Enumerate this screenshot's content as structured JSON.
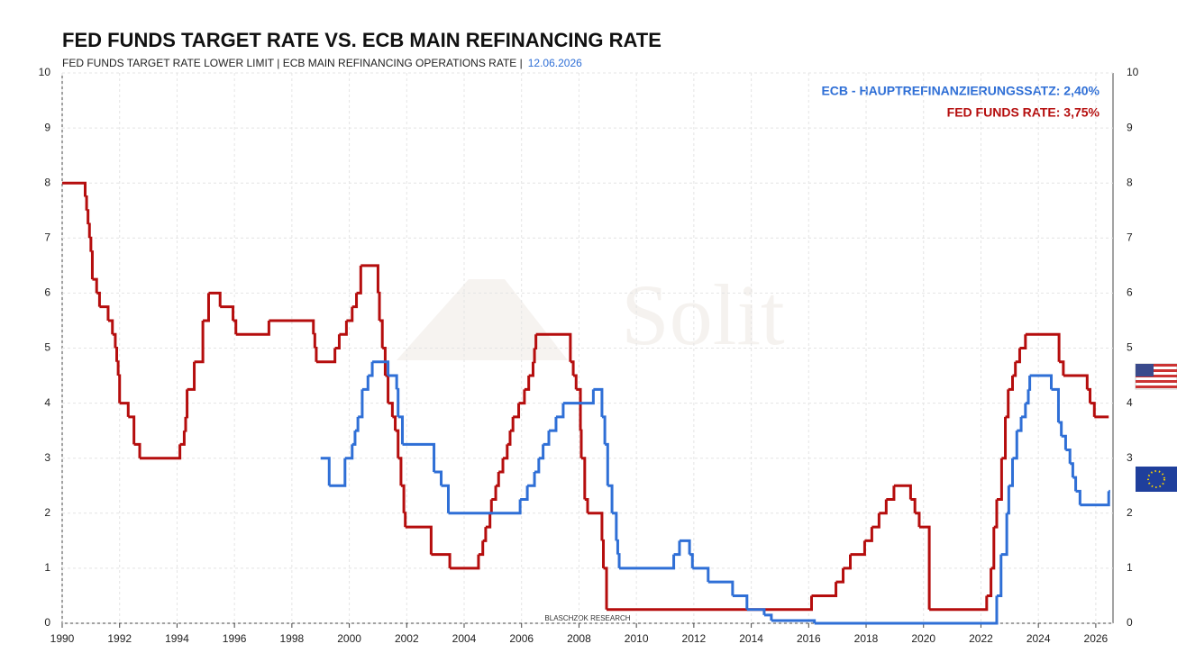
{
  "chart_data": {
    "type": "step-line",
    "title": "FED FUNDS TARGET RATE  VS.  ECB MAIN REFINANCING RATE",
    "subtitle": "FED FUNDS TARGET RATE LOWER LIMIT | ECB MAIN REFINANCING OPERATIONS RATE |",
    "date": "12.06.2026",
    "source": "BLASCHZOK  RESEARCH",
    "watermark": "Solit",
    "annotations": [
      "ECB - HAUPTREFINANZIERUNGSSATZ: 2,40%",
      "FED FUNDS RATE: 3,75%"
    ],
    "xlim": [
      1990,
      2026.6
    ],
    "ylim": [
      0,
      10
    ],
    "xticks": [
      1990,
      1992,
      1994,
      1996,
      1998,
      2000,
      2002,
      2004,
      2006,
      2008,
      2010,
      2012,
      2014,
      2016,
      2018,
      2020,
      2022,
      2024,
      2026
    ],
    "yticks": [
      0,
      1,
      2,
      3,
      4,
      5,
      6,
      7,
      8,
      9,
      10
    ],
    "grid": true,
    "series": [
      {
        "name": "FED FUNDS RATE",
        "color": "#b50d0d",
        "x": [
          1990,
          1990.8,
          1990.85,
          1990.9,
          1990.95,
          1991,
          1991.05,
          1991.2,
          1991.3,
          1991.6,
          1991.75,
          1991.85,
          1991.9,
          1991.95,
          1992,
          1992.3,
          1992.5,
          1992.7,
          1994.1,
          1994.25,
          1994.3,
          1994.35,
          1994.6,
          1994.9,
          1995.1,
          1995.5,
          1995.95,
          1996.05,
          1997.2,
          1998.75,
          1998.8,
          1998.85,
          1999.5,
          1999.65,
          1999.9,
          2000.1,
          2000.25,
          2000.4,
          2001,
          2001.05,
          2001.15,
          2001.25,
          2001.35,
          2001.5,
          2001.6,
          2001.7,
          2001.8,
          2001.9,
          2001.95,
          2002.85,
          2003.5,
          2004.5,
          2004.65,
          2004.75,
          2004.9,
          2004.95,
          2005.1,
          2005.2,
          2005.35,
          2005.5,
          2005.6,
          2005.7,
          2005.9,
          2006.1,
          2006.25,
          2006.4,
          2006.45,
          2006.5,
          2007.7,
          2007.8,
          2007.9,
          2008.05,
          2008.08,
          2008.2,
          2008.3,
          2008.8,
          2008.85,
          2008.96,
          2016.1,
          2016.95,
          2017.2,
          2017.45,
          2017.95,
          2018.2,
          2018.45,
          2018.7,
          2018.97,
          2019.55,
          2019.7,
          2019.85,
          2020.2,
          2022.2,
          2022.35,
          2022.45,
          2022.55,
          2022.72,
          2022.85,
          2022.95,
          2023.1,
          2023.2,
          2023.35,
          2023.55,
          2024.72,
          2024.87,
          2025.7,
          2025.8,
          2025.95,
          2026.45
        ],
        "values": [
          8,
          7.75,
          7.5,
          7.25,
          7,
          6.75,
          6.25,
          6,
          5.75,
          5.5,
          5.25,
          5,
          4.75,
          4.5,
          4,
          3.75,
          3.25,
          3,
          3.25,
          3.5,
          3.75,
          4.25,
          4.75,
          5.5,
          6,
          5.75,
          5.5,
          5.25,
          5.5,
          5.25,
          5,
          4.75,
          5,
          5.25,
          5.5,
          5.75,
          6,
          6.5,
          6,
          5.5,
          5,
          4.5,
          4,
          3.75,
          3.5,
          3,
          2.5,
          2,
          1.75,
          1.25,
          1,
          1.25,
          1.5,
          1.75,
          2,
          2.25,
          2.5,
          2.75,
          3,
          3.25,
          3.5,
          3.75,
          4,
          4.25,
          4.5,
          4.75,
          5,
          5.25,
          4.75,
          4.5,
          4.25,
          3.5,
          3,
          2.25,
          2,
          1.5,
          1,
          0.25,
          0.5,
          0.75,
          1,
          1.25,
          1.5,
          1.75,
          2,
          2.25,
          2.5,
          2.25,
          2,
          1.75,
          0.25,
          0.5,
          1,
          1.75,
          2.25,
          3,
          3.75,
          4.25,
          4.5,
          4.75,
          5,
          5.25,
          4.75,
          4.5,
          4.25,
          4,
          3.75,
          3.75
        ]
      },
      {
        "name": "ECB - HAUPTREFINANZIERUNGSSATZ",
        "color": "#2f6fd6",
        "x": [
          1999,
          1999.3,
          1999.85,
          2000.1,
          2000.2,
          2000.3,
          2000.45,
          2000.65,
          2000.8,
          2001.35,
          2001.65,
          2001.7,
          2001.85,
          2002.95,
          2003.2,
          2003.45,
          2005.95,
          2006.2,
          2006.45,
          2006.6,
          2006.75,
          2006.95,
          2007.2,
          2007.45,
          2008.5,
          2008.8,
          2008.9,
          2009,
          2009.15,
          2009.3,
          2009.35,
          2009.4,
          2011.3,
          2011.5,
          2011.85,
          2011.95,
          2012.5,
          2013.35,
          2013.85,
          2014.45,
          2014.7,
          2016.2,
          2022.55,
          2022.7,
          2022.9,
          2022.97,
          2023.1,
          2023.25,
          2023.4,
          2023.55,
          2023.65,
          2023.7,
          2024.45,
          2024.7,
          2024.8,
          2024.95,
          2025.1,
          2025.2,
          2025.3,
          2025.45,
          2026.45,
          2026.5
        ],
        "values": [
          3,
          2.5,
          3,
          3.25,
          3.5,
          3.75,
          4.25,
          4.5,
          4.75,
          4.5,
          4.25,
          3.75,
          3.25,
          2.75,
          2.5,
          2,
          2.25,
          2.5,
          2.75,
          3,
          3.25,
          3.5,
          3.75,
          4,
          4.25,
          3.75,
          3.25,
          2.5,
          2,
          1.5,
          1.25,
          1,
          1.25,
          1.5,
          1.25,
          1,
          0.75,
          0.5,
          0.25,
          0.15,
          0.05,
          0,
          0.5,
          1.25,
          2,
          2.5,
          3,
          3.5,
          3.75,
          4,
          4.25,
          4.5,
          4.25,
          3.65,
          3.4,
          3.15,
          2.9,
          2.65,
          2.4,
          2.15,
          2.4,
          2.4
        ]
      }
    ]
  }
}
